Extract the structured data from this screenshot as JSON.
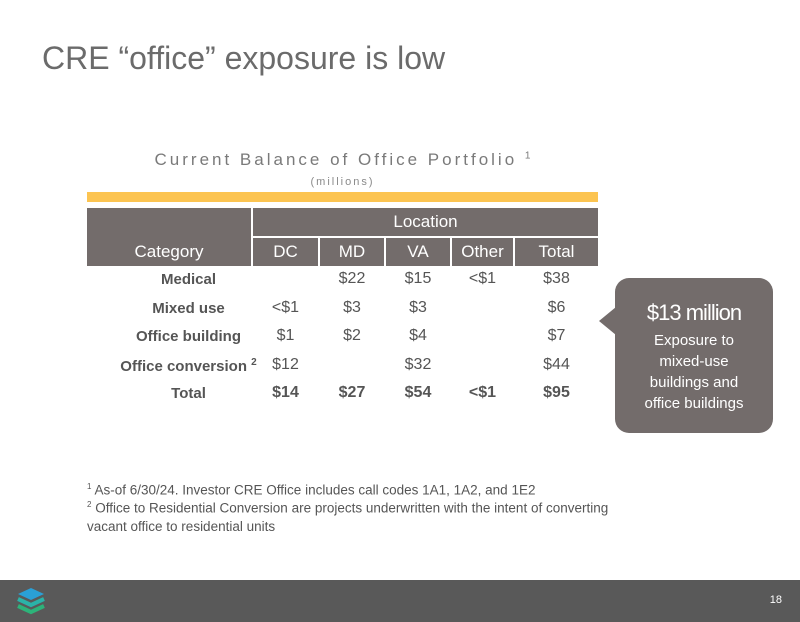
{
  "title": "CRE “office” exposure is low",
  "table": {
    "title": "Current Balance of Office Portfolio",
    "title_footnote": "1",
    "subtitle": "(millions)",
    "category_header": "Category",
    "group_header": "Location",
    "columns": [
      "DC",
      "MD",
      "VA",
      "Other",
      "Total"
    ],
    "rows": [
      {
        "category": "Medical",
        "footnote": "",
        "values": [
          "",
          "$22",
          "$15",
          "<$1",
          "$38"
        ]
      },
      {
        "category": "Mixed use",
        "footnote": "",
        "values": [
          "<$1",
          "$3",
          "$3",
          "",
          "$6"
        ]
      },
      {
        "category": "Office building",
        "footnote": "",
        "values": [
          "$1",
          "$2",
          "$4",
          "",
          "$7"
        ]
      },
      {
        "category": "Office conversion",
        "footnote": "2",
        "values": [
          "$12",
          "",
          "$32",
          "",
          "$44"
        ]
      },
      {
        "category": "Total",
        "footnote": "",
        "values": [
          "$14",
          "$27",
          "$54",
          "<$1",
          "$95"
        ]
      }
    ],
    "accent_color": "#fcc451",
    "header_color": "#736c6b"
  },
  "callout": {
    "amount": "$13 million",
    "text_lines": [
      "Exposure to",
      "mixed-use",
      "buildings and",
      "office buildings"
    ]
  },
  "footnotes": [
    {
      "mark": "1",
      "text": "As-of 6/30/24. Investor CRE Office includes call codes 1A1, 1A2, and 1E2"
    },
    {
      "mark": "2",
      "text": "Office to Residential Conversion are projects underwritten with the intent of converting"
    },
    {
      "mark": "",
      "text": "vacant office to residential  units"
    }
  ],
  "footer": {
    "page_number": "18",
    "logo_icon": "stacked-layers-logo"
  }
}
